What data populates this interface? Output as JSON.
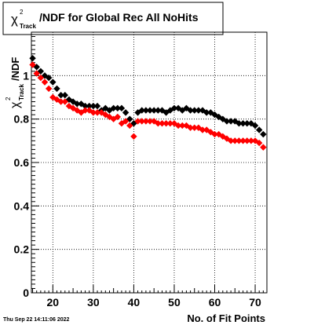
{
  "chart_data": {
    "type": "scatter",
    "title_parts": {
      "chi": "χ",
      "sup": "2",
      "sub": "Track",
      "rest": "/NDF for Global Rec All NoHits"
    },
    "ylabel_parts": {
      "chi": "χ",
      "sup": "2",
      "sub": "Track",
      "rest": "/NDF"
    },
    "xlabel": "No. of Fit Points",
    "footer": "Thu Sep 22 14:11:06 2022",
    "xlim": [
      14.7,
      72.9
    ],
    "ylim": [
      0,
      1.2
    ],
    "x_ticks": [
      20,
      30,
      40,
      50,
      60,
      70
    ],
    "y_ticks": [
      0,
      0.2,
      0.4,
      0.6,
      0.8,
      1
    ],
    "x_tick_labels": [
      "20",
      "30",
      "40",
      "50",
      "60",
      "70"
    ],
    "y_tick_labels": [
      "0",
      "0.2",
      "0.4",
      "0.6",
      "0.8",
      "1"
    ],
    "grid": true,
    "colors": {
      "black_series": "#000000",
      "red_series": "#ff0000"
    },
    "series": [
      {
        "color": "#000000",
        "x": [
          15,
          16,
          17,
          18,
          19,
          20,
          21,
          22,
          23,
          24,
          25,
          26,
          27,
          28,
          29,
          30,
          31,
          32,
          33,
          34,
          35,
          36,
          37,
          38,
          39,
          40,
          41,
          42,
          43,
          44,
          45,
          46,
          47,
          48,
          49,
          50,
          51,
          52,
          53,
          54,
          55,
          56,
          57,
          58,
          59,
          60,
          61,
          62,
          63,
          64,
          65,
          66,
          67,
          68,
          69,
          70,
          71,
          72
        ],
        "y": [
          1.08,
          1.04,
          1.02,
          1.0,
          0.99,
          0.97,
          0.94,
          0.91,
          0.91,
          0.89,
          0.88,
          0.87,
          0.87,
          0.86,
          0.86,
          0.86,
          0.86,
          0.84,
          0.85,
          0.84,
          0.85,
          0.85,
          0.85,
          0.83,
          0.8,
          0.78,
          0.83,
          0.84,
          0.84,
          0.84,
          0.84,
          0.84,
          0.84,
          0.83,
          0.84,
          0.85,
          0.85,
          0.84,
          0.85,
          0.84,
          0.84,
          0.84,
          0.84,
          0.83,
          0.83,
          0.82,
          0.81,
          0.8,
          0.79,
          0.79,
          0.79,
          0.78,
          0.78,
          0.78,
          0.78,
          0.77,
          0.75,
          0.73
        ]
      },
      {
        "color": "#ff0000",
        "x": [
          15,
          16,
          17,
          18,
          19,
          20,
          21,
          22,
          23,
          24,
          25,
          26,
          27,
          28,
          29,
          30,
          31,
          32,
          33,
          34,
          35,
          36,
          37,
          38,
          39,
          40,
          41,
          42,
          43,
          44,
          45,
          46,
          47,
          48,
          49,
          50,
          51,
          52,
          53,
          54,
          55,
          56,
          57,
          58,
          59,
          60,
          61,
          62,
          63,
          64,
          65,
          66,
          67,
          68,
          69,
          70,
          71,
          72
        ],
        "y": [
          1.05,
          1.01,
          0.99,
          0.97,
          0.94,
          0.9,
          0.89,
          0.88,
          0.88,
          0.86,
          0.85,
          0.84,
          0.83,
          0.84,
          0.84,
          0.83,
          0.83,
          0.83,
          0.82,
          0.81,
          0.8,
          0.81,
          0.78,
          0.79,
          0.77,
          0.72,
          0.79,
          0.79,
          0.79,
          0.79,
          0.79,
          0.78,
          0.78,
          0.78,
          0.78,
          0.78,
          0.77,
          0.77,
          0.77,
          0.76,
          0.76,
          0.76,
          0.75,
          0.75,
          0.74,
          0.73,
          0.73,
          0.72,
          0.71,
          0.7,
          0.7,
          0.7,
          0.7,
          0.7,
          0.7,
          0.7,
          0.69,
          0.67
        ]
      }
    ]
  }
}
